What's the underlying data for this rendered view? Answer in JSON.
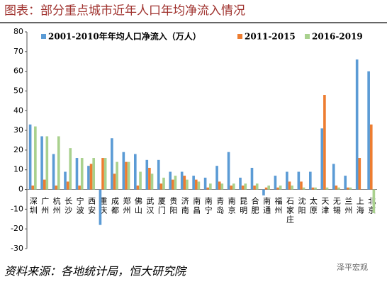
{
  "chart_data": {
    "type": "bar",
    "title": "图表：部分重点城市近年人口年均净流入情况",
    "source": "资料来源：各地统计局，恒大研究院",
    "watermark": "泽平宏观",
    "categories": [
      "深圳",
      "广州",
      "杭州",
      "长沙",
      "宁波",
      "西安",
      "重庆",
      "成都",
      "郑州",
      "佛山",
      "武汉",
      "厦门",
      "贵阳",
      "济南",
      "南昌",
      "南宁",
      "青岛",
      "南京",
      "昆明",
      "合肥",
      "南通",
      "福州",
      "石家庄",
      "沈阳",
      "太原",
      "天津",
      "无锡",
      "兰州",
      "上海",
      "北京"
    ],
    "series": [
      {
        "name": "2001-2010年年均人口净流入（万人）",
        "color": "#5b9bd5",
        "values": [
          33,
          27,
          18,
          9,
          16,
          12,
          -18,
          26,
          19,
          18,
          15,
          15,
          9,
          9,
          7,
          6,
          12,
          19,
          6,
          11,
          -3,
          7,
          9,
          9,
          9,
          31,
          13,
          7,
          66,
          60
        ]
      },
      {
        "name": "2011-2015",
        "color": "#ed7d31",
        "values": [
          2,
          5,
          2,
          4,
          2,
          13,
          16,
          8,
          14,
          2,
          11,
          3,
          5,
          7,
          5,
          1,
          4,
          2,
          2,
          2,
          1,
          1,
          4,
          4,
          1,
          48,
          2,
          1,
          16,
          33
        ]
      },
      {
        "name": "2016-2019",
        "color": "#a9d18e",
        "values": [
          32,
          27,
          27,
          21,
          16,
          16,
          16,
          14,
          14,
          9,
          8,
          6,
          7,
          5,
          4,
          3,
          3,
          3,
          3,
          3,
          2,
          2,
          2,
          1,
          1,
          1,
          1,
          1,
          0,
          -12
        ]
      }
    ],
    "ylim": [
      -30,
      80
    ],
    "yticks": [
      -30,
      -20,
      -10,
      0,
      10,
      20,
      30,
      40,
      50,
      60,
      70,
      80
    ],
    "legend": "top"
  }
}
